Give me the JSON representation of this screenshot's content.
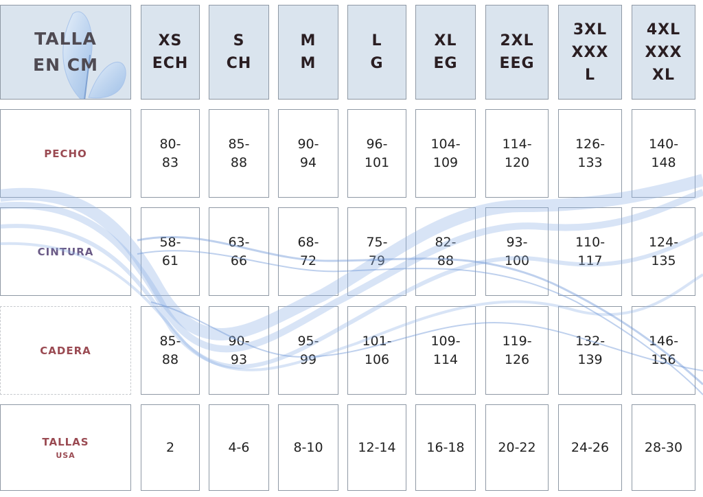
{
  "title": {
    "line1": "TALLA",
    "line2": "EN CM"
  },
  "sizes": [
    {
      "lines": [
        "XS",
        "ECH"
      ]
    },
    {
      "lines": [
        "S",
        "CH"
      ]
    },
    {
      "lines": [
        "M",
        "M"
      ]
    },
    {
      "lines": [
        "L",
        "G"
      ]
    },
    {
      "lines": [
        "XL",
        "EG"
      ]
    },
    {
      "lines": [
        "2XL",
        "EEG"
      ]
    },
    {
      "lines": [
        "3XL",
        "XXX",
        "L"
      ]
    },
    {
      "lines": [
        "4XL",
        "XXX",
        "XL"
      ]
    }
  ],
  "rows": [
    {
      "label": "PECHO",
      "label_sub": "",
      "values": [
        [
          "80-",
          "83"
        ],
        [
          "85-",
          "88"
        ],
        [
          "90-",
          "94"
        ],
        [
          "96-",
          "101"
        ],
        [
          "104-",
          "109"
        ],
        [
          "114-",
          "120"
        ],
        [
          "126-",
          "133"
        ],
        [
          "140-",
          "148"
        ]
      ]
    },
    {
      "label": "CINTURA",
      "label_sub": "",
      "values": [
        [
          "58-",
          "61"
        ],
        [
          "63-",
          "66"
        ],
        [
          "68-",
          "72"
        ],
        [
          "75-",
          "79"
        ],
        [
          "82-",
          "88"
        ],
        [
          "93-",
          "100"
        ],
        [
          "110-",
          "117"
        ],
        [
          "124-",
          "135"
        ]
      ]
    },
    {
      "label": "CADERA",
      "label_sub": "",
      "values": [
        [
          "85-",
          "88"
        ],
        [
          "90-",
          "93"
        ],
        [
          "95-",
          "99"
        ],
        [
          "101-",
          "106"
        ],
        [
          "109-",
          "114"
        ],
        [
          "119-",
          "126"
        ],
        [
          "132-",
          "139"
        ],
        [
          "146-",
          "156"
        ]
      ]
    },
    {
      "label": "TALLAS",
      "label_sub": "USA",
      "values": [
        [
          "2"
        ],
        [
          "4-6"
        ],
        [
          "8-10"
        ],
        [
          "12-14"
        ],
        [
          "16-18"
        ],
        [
          "20-22"
        ],
        [
          "24-26"
        ],
        [
          "28-30"
        ]
      ]
    }
  ],
  "colors": {
    "header_bg": "#dae4ee",
    "label_red": "#9a4a52",
    "label_purple": "#6a5a86",
    "wave_blue": "#8fb1e4"
  }
}
